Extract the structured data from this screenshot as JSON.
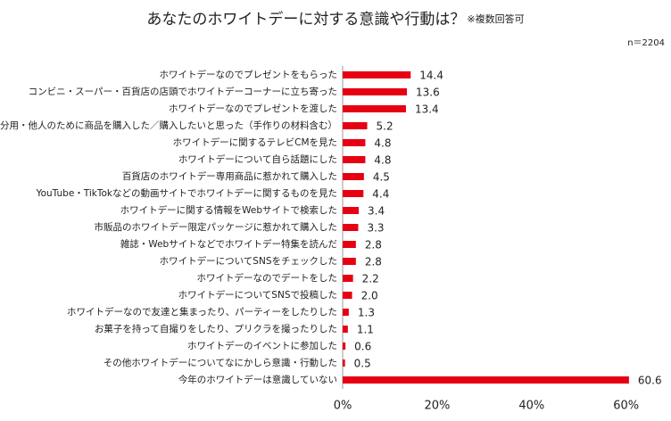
{
  "chart_data": {
    "type": "bar",
    "orientation": "horizontal",
    "title": "あなたのホワイトデーに対する意識や行動は？",
    "subtitle": "※複数回答可",
    "note": "n＝2204",
    "categories": [
      "ホワイトデーなのでプレゼントをもらった",
      "コンビニ・スーパー・百貨店の店頭でホワイトデーコーナーに立ち寄った",
      "ホワイトデーなのでプレゼントを渡した",
      "自分用・他人のために商品を購入した／購入したいと思った（手作りの材料含む）",
      "ホワイトデーに関するテレビCMを見た",
      "ホワイトデーについて自ら話題にした",
      "百貨店のホワイトデー専用商品に惹かれて購入した",
      "YouTube・TikTokなどの動画サイトでホワイトデーに関するものを見た",
      "ホワイトデーに関する情報をWebサイトで検索した",
      "市販品のホワイトデー限定パッケージに惹かれて購入した",
      "雑誌・Webサイトなどでホワイトデー特集を読んだ",
      "ホワイトデーについてSNSをチェックした",
      "ホワイトデーなのでデートをした",
      "ホワイトデーについてSNSで投稿した",
      "ホワイトデーなので友達と集まったり、パーティーをしたりした",
      "お菓子を持って自撮りをしたり、プリクラを撮ったりした",
      "ホワイトデーのイベントに参加した",
      "その他ホワイトデーについてなにかしら意識・行動した",
      "今年のホワイトデーは意識していない"
    ],
    "values": [
      14.4,
      13.6,
      13.4,
      5.2,
      4.8,
      4.8,
      4.5,
      4.4,
      3.4,
      3.3,
      2.8,
      2.8,
      2.2,
      2.0,
      1.3,
      1.1,
      0.6,
      0.5,
      60.6
    ],
    "value_labels": [
      "14.4",
      "13.6",
      "13.4",
      "5.2",
      "4.8",
      "4.8",
      "4.5",
      "4.4",
      "3.4",
      "3.3",
      "2.8",
      "2.8",
      "2.2",
      "2.0",
      "1.3",
      "1.1",
      "0.6",
      "0.5",
      "60.6"
    ],
    "color": "#e60012",
    "xlim": [
      0,
      61
    ],
    "xticks": [
      {
        "value": 0,
        "label": "0%"
      },
      {
        "value": 20,
        "label": "20%"
      },
      {
        "value": 40,
        "label": "40%"
      },
      {
        "value": 60,
        "label": "60%"
      }
    ]
  }
}
